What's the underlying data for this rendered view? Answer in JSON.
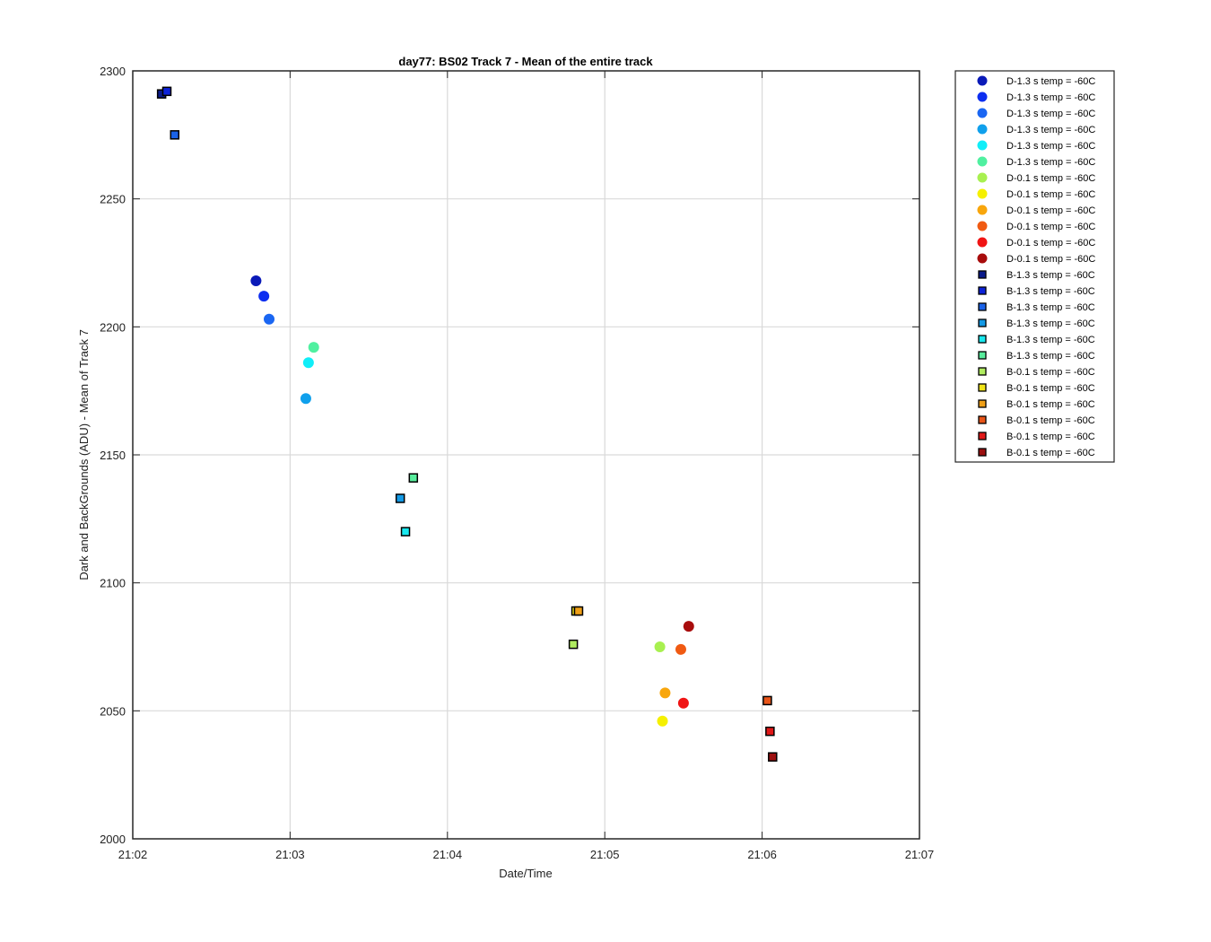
{
  "chart_data": {
    "type": "scatter",
    "title": "day77: BS02  Track 7 - Mean of the entire track",
    "xlabel": "Date/Time",
    "ylabel": "Dark and BackGrounds (ADU) - Mean of Track 7",
    "xlim": [
      "21:02",
      "21:07"
    ],
    "ylim": [
      2000,
      2300
    ],
    "x_ticks": [
      "21:02",
      "21:03",
      "21:04",
      "21:05",
      "21:06",
      "21:07"
    ],
    "y_ticks": [
      2000,
      2050,
      2100,
      2150,
      2200,
      2250,
      2300
    ],
    "grid": true,
    "legend_position": "outside-top-right",
    "series": [
      {
        "name": "D-1.3 s temp = -60C",
        "marker": "circle",
        "color": "#0a1ab8",
        "points": [
          {
            "x": "21:02:47",
            "y": 2218
          }
        ]
      },
      {
        "name": "D-1.3 s temp = -60C",
        "marker": "circle",
        "color": "#0d2ef0",
        "points": [
          {
            "x": "21:02:50",
            "y": 2212
          }
        ]
      },
      {
        "name": "D-1.3 s temp = -60C",
        "marker": "circle",
        "color": "#1a66f2",
        "points": [
          {
            "x": "21:02:52",
            "y": 2203
          }
        ]
      },
      {
        "name": "D-1.3 s temp = -60C",
        "marker": "circle",
        "color": "#10a0ec",
        "points": [
          {
            "x": "21:03:06",
            "y": 2172
          }
        ]
      },
      {
        "name": "D-1.3 s temp = -60C",
        "marker": "circle",
        "color": "#10eef8",
        "points": [
          {
            "x": "21:03:07",
            "y": 2186
          }
        ]
      },
      {
        "name": "D-1.3 s temp = -60C",
        "marker": "circle",
        "color": "#50f0a0",
        "points": [
          {
            "x": "21:03:09",
            "y": 2192
          }
        ]
      },
      {
        "name": "D-0.1 s temp = -60C",
        "marker": "circle",
        "color": "#a8f050",
        "points": [
          {
            "x": "21:05:21",
            "y": 2075
          }
        ]
      },
      {
        "name": "D-0.1 s temp = -60C",
        "marker": "circle",
        "color": "#f5f000",
        "points": [
          {
            "x": "21:05:22",
            "y": 2046
          }
        ]
      },
      {
        "name": "D-0.1 s temp = -60C",
        "marker": "circle",
        "color": "#f8a60c",
        "points": [
          {
            "x": "21:05:23",
            "y": 2057
          }
        ]
      },
      {
        "name": "D-0.1 s temp = -60C",
        "marker": "circle",
        "color": "#f05a12",
        "points": [
          {
            "x": "21:05:29",
            "y": 2074
          }
        ]
      },
      {
        "name": "D-0.1 s temp = -60C",
        "marker": "circle",
        "color": "#f01414",
        "points": [
          {
            "x": "21:05:30",
            "y": 2053
          }
        ]
      },
      {
        "name": "D-0.1 s temp = -60C",
        "marker": "circle",
        "color": "#a80c0c",
        "points": [
          {
            "x": "21:05:32",
            "y": 2083
          }
        ]
      },
      {
        "name": "B-1.3 s temp = -60C",
        "marker": "square",
        "color": "#0a1a8a",
        "points": [
          {
            "x": "21:02:11",
            "y": 2291
          }
        ]
      },
      {
        "name": "B-1.3 s temp = -60C",
        "marker": "square",
        "color": "#0d22d8",
        "points": [
          {
            "x": "21:02:13",
            "y": 2292
          }
        ]
      },
      {
        "name": "B-1.3 s temp = -60C",
        "marker": "square",
        "color": "#1a62e8",
        "points": [
          {
            "x": "21:02:16",
            "y": 2275
          }
        ]
      },
      {
        "name": "B-1.3 s temp = -60C",
        "marker": "square",
        "color": "#149ae6",
        "points": [
          {
            "x": "21:03:42",
            "y": 2133
          }
        ]
      },
      {
        "name": "B-1.3 s temp = -60C",
        "marker": "square",
        "color": "#18e8ee",
        "points": [
          {
            "x": "21:03:44",
            "y": 2120
          }
        ]
      },
      {
        "name": "B-1.3 s temp = -60C",
        "marker": "square",
        "color": "#58ec9c",
        "points": [
          {
            "x": "21:03:47",
            "y": 2141
          }
        ]
      },
      {
        "name": "B-0.1 s temp = -60C",
        "marker": "square",
        "color": "#b0ec60",
        "points": [
          {
            "x": "21:04:48",
            "y": 2076
          }
        ]
      },
      {
        "name": "B-0.1 s temp = -60C",
        "marker": "square",
        "color": "#f0e418",
        "points": [
          {
            "x": "21:04:49",
            "y": 2089
          }
        ]
      },
      {
        "name": "B-0.1 s temp = -60C",
        "marker": "square",
        "color": "#f0a018",
        "points": [
          {
            "x": "21:04:50",
            "y": 2089
          }
        ]
      },
      {
        "name": "B-0.1 s temp = -60C",
        "marker": "square",
        "color": "#e85418",
        "points": [
          {
            "x": "21:06:02",
            "y": 2054
          }
        ]
      },
      {
        "name": "B-0.1 s temp = -60C",
        "marker": "square",
        "color": "#e01818",
        "points": [
          {
            "x": "21:06:03",
            "y": 2042
          }
        ]
      },
      {
        "name": "B-0.1 s temp = -60C",
        "marker": "square",
        "color": "#9c1010",
        "points": [
          {
            "x": "21:06:04",
            "y": 2032
          }
        ]
      }
    ]
  }
}
